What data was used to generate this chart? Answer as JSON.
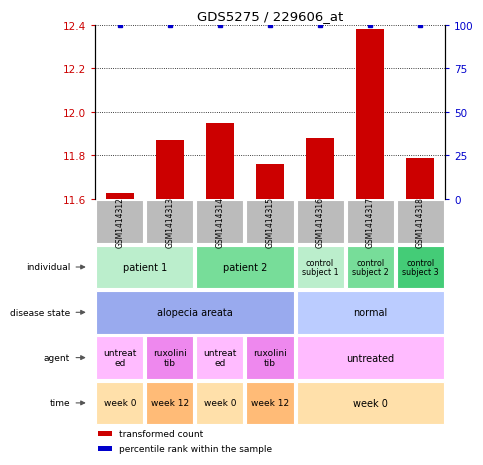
{
  "title": "GDS5275 / 229606_at",
  "samples": [
    "GSM1414312",
    "GSM1414313",
    "GSM1414314",
    "GSM1414315",
    "GSM1414316",
    "GSM1414317",
    "GSM1414318"
  ],
  "red_values": [
    11.63,
    11.87,
    11.95,
    11.76,
    11.88,
    12.38,
    11.79
  ],
  "blue_values": [
    100,
    100,
    100,
    100,
    100,
    100,
    100
  ],
  "ylim_left": [
    11.6,
    12.4
  ],
  "ylim_right": [
    0,
    100
  ],
  "yticks_left": [
    11.6,
    11.8,
    12.0,
    12.2,
    12.4
  ],
  "yticks_right": [
    0,
    25,
    50,
    75,
    100
  ],
  "bar_color": "#cc0000",
  "dot_color": "#0000cc",
  "sample_header_color": "#bbbbbb",
  "annotation_rows": [
    {
      "label": "individual",
      "cells": [
        {
          "text": "patient 1",
          "span": 2,
          "color": "#bbeecc"
        },
        {
          "text": "patient 2",
          "span": 2,
          "color": "#77dd99"
        },
        {
          "text": "control\nsubject 1",
          "span": 1,
          "color": "#bbeecc"
        },
        {
          "text": "control\nsubject 2",
          "span": 1,
          "color": "#77dd99"
        },
        {
          "text": "control\nsubject 3",
          "span": 1,
          "color": "#44cc77"
        }
      ]
    },
    {
      "label": "disease state",
      "cells": [
        {
          "text": "alopecia areata",
          "span": 4,
          "color": "#99aaee"
        },
        {
          "text": "normal",
          "span": 3,
          "color": "#bbccff"
        }
      ]
    },
    {
      "label": "agent",
      "cells": [
        {
          "text": "untreat\ned",
          "span": 1,
          "color": "#ffbbff"
        },
        {
          "text": "ruxolini\ntib",
          "span": 1,
          "color": "#ee88ee"
        },
        {
          "text": "untreat\ned",
          "span": 1,
          "color": "#ffbbff"
        },
        {
          "text": "ruxolini\ntib",
          "span": 1,
          "color": "#ee88ee"
        },
        {
          "text": "untreated",
          "span": 3,
          "color": "#ffbbff"
        }
      ]
    },
    {
      "label": "time",
      "cells": [
        {
          "text": "week 0",
          "span": 1,
          "color": "#ffe0aa"
        },
        {
          "text": "week 12",
          "span": 1,
          "color": "#ffbb77"
        },
        {
          "text": "week 0",
          "span": 1,
          "color": "#ffe0aa"
        },
        {
          "text": "week 12",
          "span": 1,
          "color": "#ffbb77"
        },
        {
          "text": "week 0",
          "span": 3,
          "color": "#ffe0aa"
        }
      ]
    }
  ],
  "legend_items": [
    {
      "label": "transformed count",
      "color": "#cc0000"
    },
    {
      "label": "percentile rank within the sample",
      "color": "#0000cc"
    }
  ]
}
